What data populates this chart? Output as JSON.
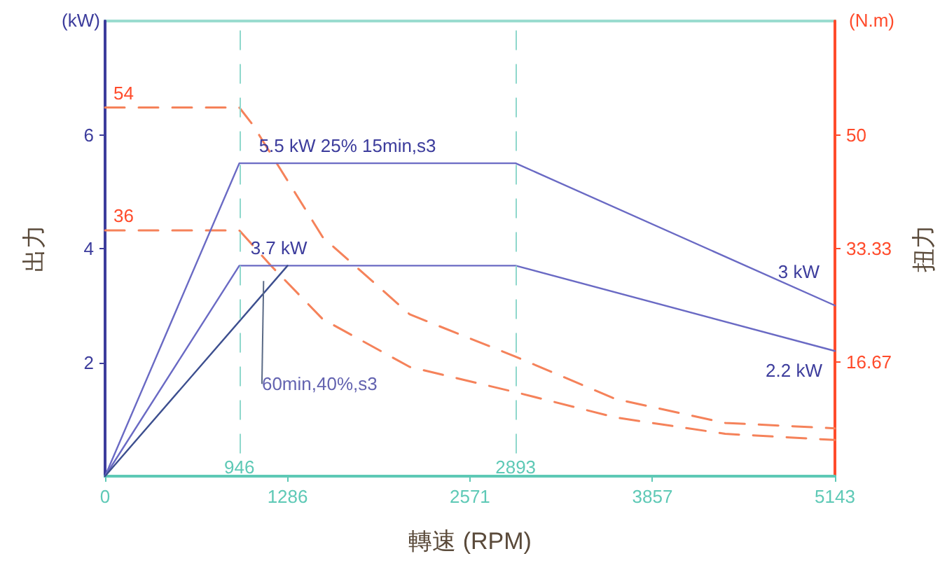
{
  "chart_data": {
    "type": "line",
    "xlabel": "轉速 (RPM)",
    "ylabel": "出力",
    "y2label": "扭力",
    "annotations": [
      "(kW)",
      "(N.m)",
      {
        "text": "60min,40%,s3",
        "x": 1117,
        "y": 3.43
      }
    ],
    "xlim": [
      0,
      5143
    ],
    "xticks": [
      0,
      1286,
      2571,
      3857,
      5143
    ],
    "ylim": [
      0,
      8
    ],
    "yticks": [
      2,
      4,
      6
    ],
    "y2lim": [
      0,
      66.67
    ],
    "y2ticks": [
      16.67,
      33.33,
      50
    ],
    "grid": false,
    "marker": "none",
    "ref_lines": [
      {
        "axis": "x",
        "value": 946,
        "label": "946",
        "color": "#8fd8cc",
        "line_style": "dashed"
      },
      {
        "axis": "x",
        "value": 2893,
        "label": "2893",
        "color": "#8fd8cc",
        "line_style": "dashed"
      }
    ],
    "series": [
      {
        "color": "#6a6ac4",
        "x": [
          0,
          946,
          2893,
          5143
        ],
        "values": [
          0,
          5.5,
          5.5,
          3
        ],
        "value_labels": [
          null,
          "5.5 kW 25% 15min,s3",
          null,
          "3 kW"
        ]
      },
      {
        "color": "#6a6ac4",
        "x": [
          0,
          946,
          2893,
          5143
        ],
        "values": [
          0,
          3.7,
          3.7,
          2.2
        ],
        "value_labels": [
          null,
          "3.7 kW",
          null,
          "2.2 kW"
        ]
      },
      {
        "color": "#3d4f8f",
        "x": [
          0,
          1286
        ],
        "values": [
          0,
          3.7
        ]
      },
      {
        "color": "#f5825a",
        "axis": "y2",
        "line_style": "dashed",
        "x": [
          0,
          946,
          1043,
          1534,
          2147,
          2893,
          3597,
          4370,
          5143
        ],
        "values": [
          54,
          54,
          51.4,
          35,
          23.7,
          17.5,
          11.3,
          7.8,
          7.0
        ],
        "value_labels": [
          "54",
          null,
          null,
          null,
          null,
          null,
          null,
          null,
          null
        ]
      },
      {
        "color": "#f5825a",
        "axis": "y2",
        "line_style": "dashed",
        "x": [
          0,
          946,
          1166,
          1534,
          2147,
          2893,
          3597,
          4370,
          5143
        ],
        "values": [
          36,
          36,
          30.9,
          23,
          16,
          12.3,
          8.6,
          6.2,
          5.3
        ],
        "value_labels": [
          "36",
          null,
          null,
          null,
          null,
          null,
          null,
          null,
          null
        ]
      }
    ]
  }
}
